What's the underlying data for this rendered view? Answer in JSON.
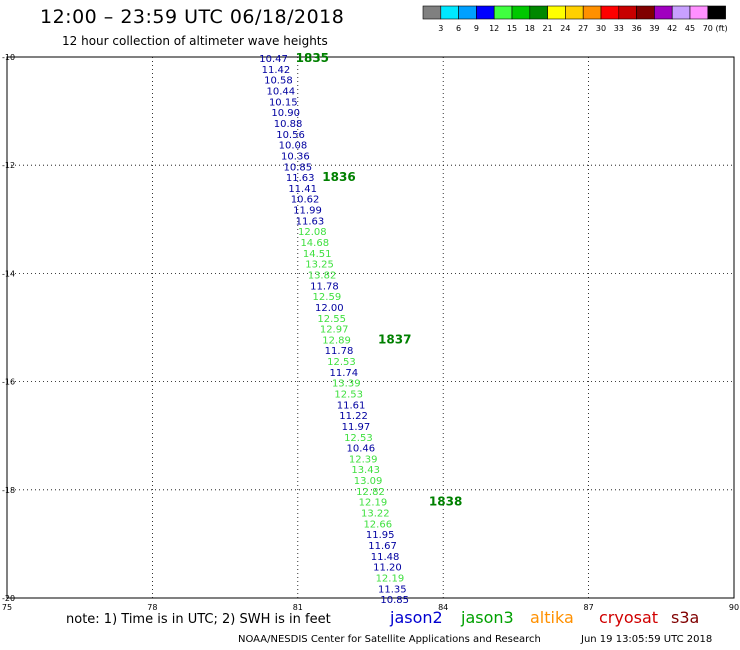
{
  "header": {
    "title": "12:00 – 23:59 UTC 06/18/2018",
    "subtitle": "12 hour collection of altimeter wave heights"
  },
  "legend": {
    "unit": "(ft)",
    "swatches": [
      {
        "label": "3",
        "color": "#808080"
      },
      {
        "label": "6",
        "color": "#00e8ff"
      },
      {
        "label": "9",
        "color": "#00a0ff"
      },
      {
        "label": "12",
        "color": "#0000ff"
      },
      {
        "label": "15",
        "color": "#40ff40"
      },
      {
        "label": "18",
        "color": "#00c800"
      },
      {
        "label": "21",
        "color": "#008800"
      },
      {
        "label": "24",
        "color": "#ffff00"
      },
      {
        "label": "27",
        "color": "#ffd000"
      },
      {
        "label": "30",
        "color": "#ff9000"
      },
      {
        "label": "33",
        "color": "#ff0000"
      },
      {
        "label": "36",
        "color": "#c80000"
      },
      {
        "label": "39",
        "color": "#800000"
      },
      {
        "label": "42",
        "color": "#a000c0"
      },
      {
        "label": "45",
        "color": "#c8a0ff"
      },
      {
        "label": "70",
        "color": "#ff90ff"
      },
      {
        "label": "",
        "color": "#000000"
      }
    ]
  },
  "map": {
    "lon_range": [
      75,
      90
    ],
    "lat_range": [
      -20,
      -10
    ],
    "grid": "dotted",
    "lon_ticks": [
      {
        "value": 75,
        "label": "75"
      },
      {
        "value": 78,
        "label": "78"
      },
      {
        "value": 81,
        "label": "81"
      },
      {
        "value": 84,
        "label": "84"
      },
      {
        "value": 87,
        "label": "87"
      },
      {
        "value": 90,
        "label": "90"
      }
    ],
    "lat_ticks": [
      {
        "value": -10,
        "label": "-10"
      },
      {
        "value": -12,
        "label": "-12"
      },
      {
        "value": -14,
        "label": "-14"
      },
      {
        "value": -16,
        "label": "-16"
      },
      {
        "value": -18,
        "label": "-18"
      },
      {
        "value": -20,
        "label": "-20"
      }
    ],
    "series_colors": {
      "jason2": "#0000a0",
      "jason3": "#40e040",
      "hour": "#008000"
    },
    "track": [
      {
        "lon": 80.5,
        "lat": -10.02,
        "v": "10.47",
        "s": "jason2"
      },
      {
        "lon": 80.55,
        "lat": -10.22,
        "v": "11.42",
        "s": "jason2"
      },
      {
        "lon": 80.6,
        "lat": -10.42,
        "v": "10.58",
        "s": "jason2"
      },
      {
        "lon": 80.65,
        "lat": -10.62,
        "v": "10.44",
        "s": "jason2"
      },
      {
        "lon": 80.7,
        "lat": -10.82,
        "v": "10.15",
        "s": "jason2"
      },
      {
        "lon": 80.75,
        "lat": -11.02,
        "v": "10.90",
        "s": "jason2"
      },
      {
        "lon": 80.8,
        "lat": -11.22,
        "v": "10.88",
        "s": "jason2"
      },
      {
        "lon": 80.85,
        "lat": -11.42,
        "v": "10.56",
        "s": "jason2"
      },
      {
        "lon": 80.9,
        "lat": -11.62,
        "v": "10.08",
        "s": "jason2"
      },
      {
        "lon": 80.95,
        "lat": -11.82,
        "v": "10.36",
        "s": "jason2"
      },
      {
        "lon": 81.0,
        "lat": -12.02,
        "v": "10.85",
        "s": "jason2"
      },
      {
        "lon": 81.05,
        "lat": -12.22,
        "v": "11.63",
        "s": "jason2"
      },
      {
        "lon": 81.1,
        "lat": -12.42,
        "v": "11.41",
        "s": "jason2"
      },
      {
        "lon": 81.15,
        "lat": -12.62,
        "v": "10.62",
        "s": "jason2"
      },
      {
        "lon": 81.2,
        "lat": -12.82,
        "v": "11.99",
        "s": "jason2"
      },
      {
        "lon": 81.25,
        "lat": -13.02,
        "v": "11.63",
        "s": "jason2"
      },
      {
        "lon": 81.3,
        "lat": -13.22,
        "v": "12.08",
        "s": "jason3"
      },
      {
        "lon": 81.35,
        "lat": -13.42,
        "v": "14.68",
        "s": "jason3"
      },
      {
        "lon": 81.4,
        "lat": -13.62,
        "v": "14.51",
        "s": "jason3"
      },
      {
        "lon": 81.45,
        "lat": -13.82,
        "v": "13.25",
        "s": "jason3"
      },
      {
        "lon": 81.5,
        "lat": -14.02,
        "v": "13.82",
        "s": "jason3"
      },
      {
        "lon": 81.55,
        "lat": -14.22,
        "v": "11.78",
        "s": "jason2"
      },
      {
        "lon": 81.6,
        "lat": -14.42,
        "v": "12.59",
        "s": "jason3"
      },
      {
        "lon": 81.65,
        "lat": -14.62,
        "v": "12.00",
        "s": "jason2"
      },
      {
        "lon": 81.7,
        "lat": -14.82,
        "v": "12.55",
        "s": "jason3"
      },
      {
        "lon": 81.75,
        "lat": -15.02,
        "v": "12.97",
        "s": "jason3"
      },
      {
        "lon": 81.8,
        "lat": -15.22,
        "v": "12.89",
        "s": "jason3"
      },
      {
        "lon": 81.85,
        "lat": -15.42,
        "v": "11.78",
        "s": "jason2"
      },
      {
        "lon": 81.9,
        "lat": -15.62,
        "v": "12.53",
        "s": "jason3"
      },
      {
        "lon": 81.95,
        "lat": -15.82,
        "v": "11.74",
        "s": "jason2"
      },
      {
        "lon": 82.0,
        "lat": -16.02,
        "v": "13.39",
        "s": "jason3"
      },
      {
        "lon": 82.05,
        "lat": -16.22,
        "v": "12.53",
        "s": "jason3"
      },
      {
        "lon": 82.1,
        "lat": -16.42,
        "v": "11.61",
        "s": "jason2"
      },
      {
        "lon": 82.15,
        "lat": -16.62,
        "v": "11.22",
        "s": "jason2"
      },
      {
        "lon": 82.2,
        "lat": -16.82,
        "v": "11.97",
        "s": "jason2"
      },
      {
        "lon": 82.25,
        "lat": -17.02,
        "v": "12.53",
        "s": "jason3"
      },
      {
        "lon": 82.3,
        "lat": -17.22,
        "v": "10.46",
        "s": "jason2"
      },
      {
        "lon": 82.35,
        "lat": -17.42,
        "v": "12.39",
        "s": "jason3"
      },
      {
        "lon": 82.4,
        "lat": -17.62,
        "v": "13.43",
        "s": "jason3"
      },
      {
        "lon": 82.45,
        "lat": -17.82,
        "v": "13.09",
        "s": "jason3"
      },
      {
        "lon": 82.5,
        "lat": -18.02,
        "v": "12.82",
        "s": "jason3"
      },
      {
        "lon": 82.55,
        "lat": -18.22,
        "v": "12.19",
        "s": "jason3"
      },
      {
        "lon": 82.6,
        "lat": -18.42,
        "v": "13.22",
        "s": "jason3"
      },
      {
        "lon": 82.65,
        "lat": -18.62,
        "v": "12.66",
        "s": "jason3"
      },
      {
        "lon": 82.7,
        "lat": -18.82,
        "v": "11.95",
        "s": "jason2"
      },
      {
        "lon": 82.75,
        "lat": -19.02,
        "v": "11.67",
        "s": "jason2"
      },
      {
        "lon": 82.8,
        "lat": -19.22,
        "v": "11.48",
        "s": "jason2"
      },
      {
        "lon": 82.85,
        "lat": -19.42,
        "v": "11.20",
        "s": "jason2"
      },
      {
        "lon": 82.9,
        "lat": -19.62,
        "v": "12.19",
        "s": "jason3"
      },
      {
        "lon": 82.95,
        "lat": -19.82,
        "v": "11.35",
        "s": "jason2"
      },
      {
        "lon": 83.0,
        "lat": -20.02,
        "v": "10.85",
        "s": "jason2"
      }
    ],
    "hour_labels": [
      {
        "lon": 81.3,
        "lat": -10.02,
        "text": "1835"
      },
      {
        "lon": 81.85,
        "lat": -12.22,
        "text": "1836"
      },
      {
        "lon": 83.0,
        "lat": -15.22,
        "text": "1837"
      },
      {
        "lon": 84.05,
        "lat": -18.22,
        "text": "1838"
      }
    ]
  },
  "note": "note:  1) Time is in UTC;  2) SWH is in feet",
  "satellites": [
    {
      "name": "jason2",
      "color": "#0000d0"
    },
    {
      "name": "jason3",
      "color": "#00a000"
    },
    {
      "name": "altika",
      "color": "#ff9000"
    },
    {
      "name": "cryosat",
      "color": "#d00000"
    },
    {
      "name": "s3a",
      "color": "#800000"
    }
  ],
  "footer": {
    "credit": "NOAA/NESDIS Center for Satellite Applications and Research",
    "timestamp": "Jun 19 13:05:59 UTC 2018"
  }
}
